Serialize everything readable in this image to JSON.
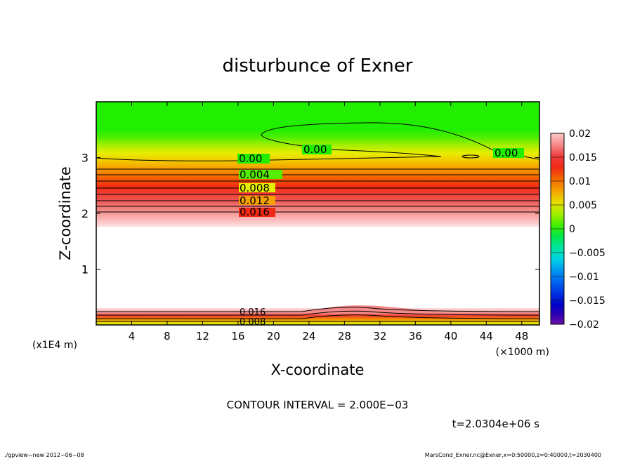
{
  "chart_data": {
    "type": "heatmap",
    "title": "disturbunce of Exner",
    "xlabel": "X-coordinate",
    "ylabel": "Z-coordinate",
    "x_scale_note": "(×1000 m)",
    "y_scale_note": "(x1E4 m)",
    "xlim": [
      0,
      50
    ],
    "ylim": [
      0,
      4
    ],
    "x_ticks": [
      4,
      8,
      12,
      16,
      20,
      24,
      28,
      32,
      36,
      40,
      44,
      48
    ],
    "y_ticks": [
      1,
      2,
      3
    ],
    "colorbar": {
      "min": -0.02,
      "max": 0.02,
      "ticks": [
        "0.02",
        "0.015",
        "0.01",
        "0.005",
        "0",
        "−0.005",
        "−0.01",
        "−0.015",
        "−0.02"
      ]
    },
    "contour_labels": [
      "0.00",
      "0.00",
      "0.00",
      "0.004",
      "0.008",
      "0.012",
      "0.016",
      "0.016",
      "0.008"
    ],
    "contour_interval_text": "CONTOUR INTERVAL = 2.000E−03",
    "time_text": "t=2.0304e+06 s",
    "grid": false
  },
  "footer": {
    "left": "./gpview−new  2012−06−08",
    "right": "MarsCond_Exner.nc@Exner,x=0:50000,z=0:40000,t=2030400"
  }
}
